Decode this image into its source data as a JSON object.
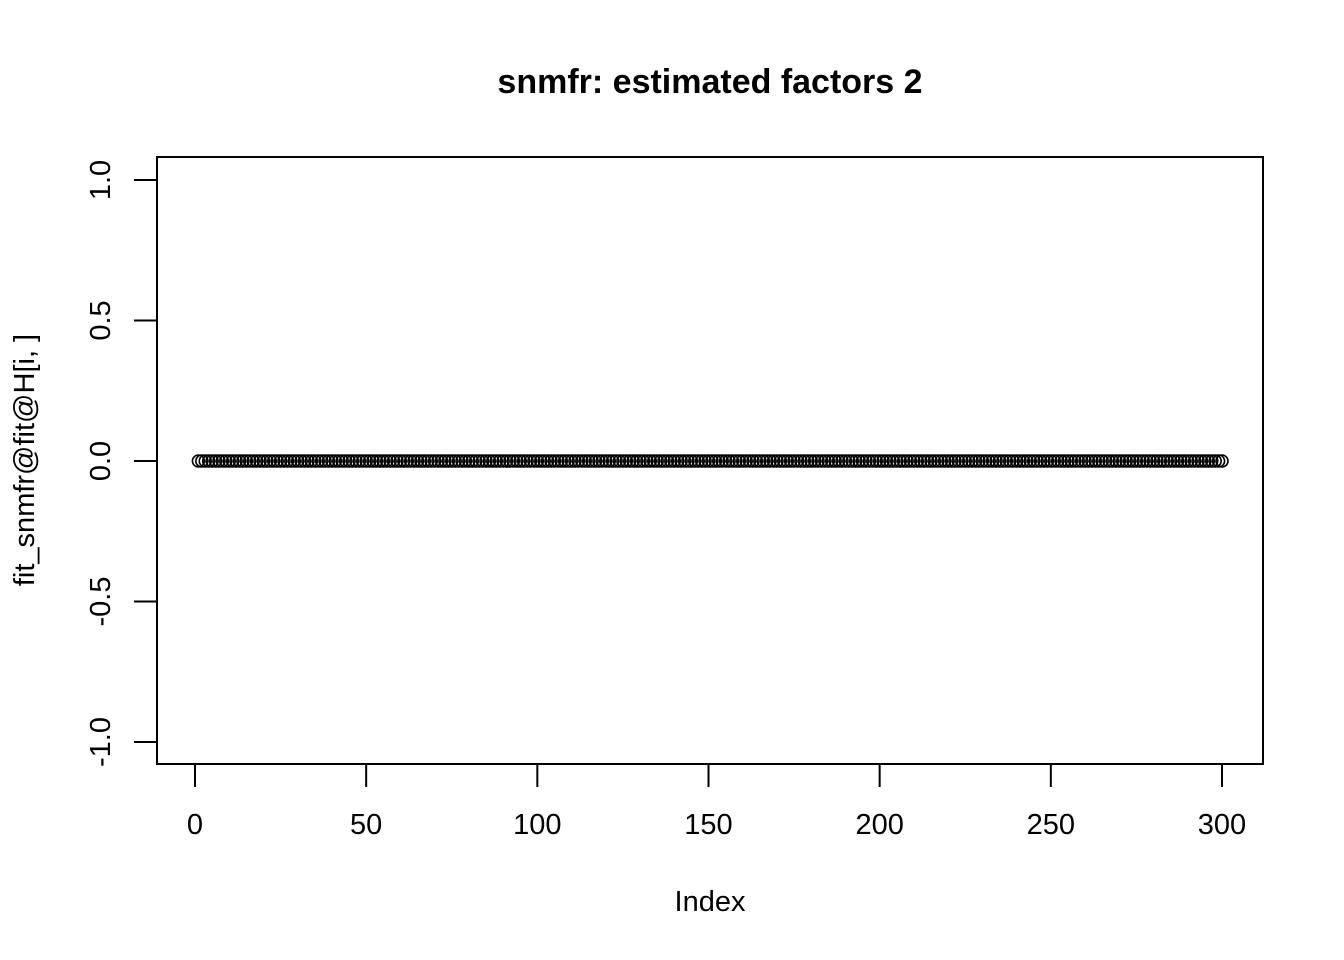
{
  "chart_data": {
    "type": "scatter",
    "title": "snmfr: estimated factors 2",
    "xlabel": "Index",
    "ylabel": "fit_snmfr@fit@H[i, ]",
    "xlim": [
      1,
      300
    ],
    "ylim": [
      -1.0,
      1.0
    ],
    "x_ticks": [
      0,
      50,
      100,
      150,
      200,
      250,
      300
    ],
    "x_tick_labels": [
      "0",
      "50",
      "100",
      "150",
      "200",
      "250",
      "300"
    ],
    "y_ticks": [
      -1.0,
      -0.5,
      0.0,
      0.5,
      1.0
    ],
    "y_tick_labels": [
      "-1.0",
      "-0.5",
      "0.0",
      "0.5",
      "1.0"
    ],
    "grid": false,
    "marker": "open-circle",
    "series": [
      {
        "x_start": 1,
        "x_end": 300,
        "x_step": 1,
        "y_constant": 0.0
      }
    ]
  }
}
